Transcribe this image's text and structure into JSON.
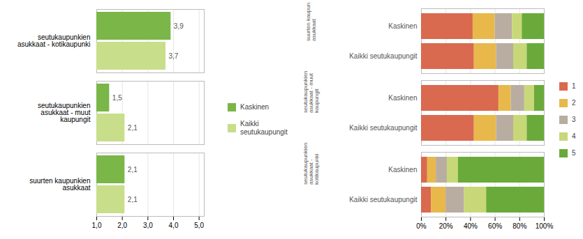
{
  "chart_data": [
    {
      "type": "bar",
      "orientation": "horizontal",
      "categories": [
        "suurten kaupunkien\nasukkaat",
        "seutukaupunkien\nasukkaat - muut\nkaupungit",
        "seutukaupunkien\nasukkaat - kotikaupunki"
      ],
      "series": [
        {
          "name": "Kaskinen",
          "color": "#7ab648",
          "values": [
            2.1,
            1.5,
            3.9
          ],
          "value_labels": [
            "2,1",
            "1,5",
            "3,9"
          ]
        },
        {
          "name": "Kaikki\nseutukaupungit",
          "color": "#c8de8a",
          "values": [
            2.1,
            2.1,
            3.7
          ],
          "value_labels": [
            "2,1",
            "2,1",
            "3,7"
          ]
        }
      ],
      "xlim": [
        1.0,
        5.2
      ],
      "xticks": [
        {
          "value": 1.0,
          "label": "1,0"
        },
        {
          "value": 2.0,
          "label": "2,0"
        },
        {
          "value": 3.0,
          "label": "3,0"
        },
        {
          "value": 4.0,
          "label": "4,0"
        },
        {
          "value": 5.0,
          "label": "5,0"
        }
      ],
      "grid": true,
      "legend": "right",
      "data_labels": true
    },
    {
      "type": "bar",
      "orientation": "horizontal",
      "stacked": true,
      "categories": [
        "Kaskinen",
        "Kaikki seutukaupungit",
        "Kaskinen",
        "Kaikki seutukaupungit",
        "Kaskinen",
        "Kaikki seutukaupungit"
      ],
      "group_labels": [
        "suurten kaupunkien\nasukkaat",
        "seutukaupunkien\nasukkaat - muut\nkaupungit",
        "seutukaupunkien\nasukkaat -\nkotikaupunki"
      ],
      "series": [
        {
          "name": "1",
          "color": "#d9694f",
          "values": [
            42,
            43,
            63,
            43,
            5,
            8
          ]
        },
        {
          "name": "2",
          "color": "#e8b84b",
          "values": [
            18,
            18,
            10,
            18,
            7,
            12
          ]
        },
        {
          "name": "3",
          "color": "#b8ada0",
          "values": [
            14,
            14,
            11,
            14,
            9,
            15
          ]
        },
        {
          "name": "4",
          "color": "#c8d878",
          "values": [
            8,
            11,
            8,
            11,
            9,
            18
          ]
        },
        {
          "name": "5",
          "color": "#6aaa3a",
          "values": [
            18,
            14,
            8,
            14,
            70,
            47
          ]
        }
      ],
      "xlim": [
        0,
        100
      ],
      "xticks": [
        {
          "value": 0,
          "label": "0%"
        },
        {
          "value": 20,
          "label": "20%"
        },
        {
          "value": 40,
          "label": "40%"
        },
        {
          "value": 60,
          "label": "60%"
        },
        {
          "value": 80,
          "label": "80%"
        },
        {
          "value": 100,
          "label": "100%"
        }
      ],
      "grid": true,
      "legend": "right"
    }
  ]
}
